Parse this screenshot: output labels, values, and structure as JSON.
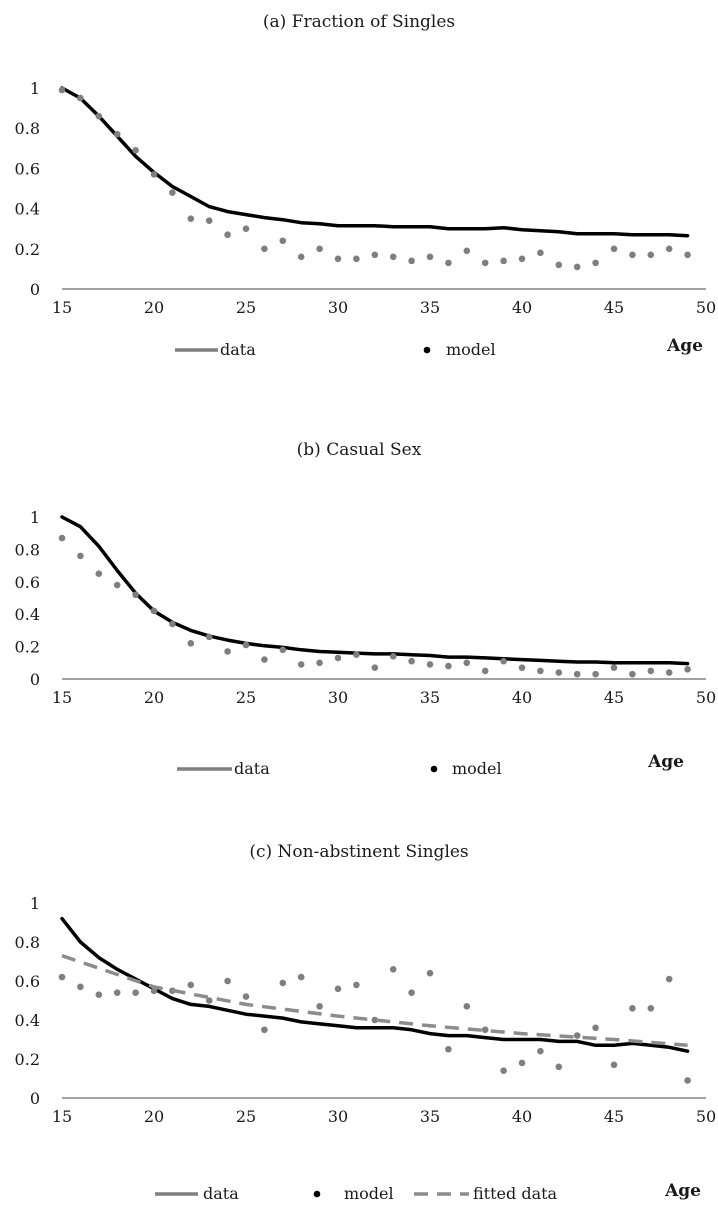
{
  "chart_data": [
    {
      "type": "line",
      "title": "(a) Fraction of Singles",
      "xlabel": "Age",
      "ylabel": "",
      "xlim": [
        15,
        50
      ],
      "ylim": [
        0,
        1
      ],
      "x_ticks": [
        "15",
        "20",
        "25",
        "30",
        "35",
        "40",
        "45",
        "50"
      ],
      "y_ticks": [
        "0",
        "0.2",
        "0.4",
        "0.6",
        "0.8",
        "1"
      ],
      "legend_position": "bottom",
      "series": [
        {
          "name": "model",
          "style": "solid",
          "color": "#000000",
          "x": [
            15,
            16,
            17,
            18,
            19,
            20,
            21,
            22,
            23,
            24,
            25,
            26,
            27,
            28,
            29,
            30,
            31,
            32,
            33,
            34,
            35,
            36,
            37,
            38,
            39,
            40,
            41,
            42,
            43,
            44,
            45,
            46,
            47,
            48,
            49
          ],
          "y": [
            1.0,
            0.95,
            0.86,
            0.76,
            0.66,
            0.58,
            0.51,
            0.46,
            0.41,
            0.385,
            0.37,
            0.355,
            0.345,
            0.33,
            0.325,
            0.315,
            0.315,
            0.315,
            0.31,
            0.31,
            0.31,
            0.3,
            0.3,
            0.3,
            0.305,
            0.295,
            0.29,
            0.285,
            0.275,
            0.275,
            0.275,
            0.27,
            0.27,
            0.27,
            0.265
          ]
        },
        {
          "name": "data",
          "style": "markers",
          "color": "#7f7f7f",
          "x": [
            15,
            16,
            17,
            18,
            19,
            20,
            21,
            22,
            23,
            24,
            25,
            26,
            27,
            28,
            29,
            30,
            31,
            32,
            33,
            34,
            35,
            36,
            37,
            38,
            39,
            40,
            41,
            42,
            43,
            44,
            45,
            46,
            47,
            48,
            49
          ],
          "y": [
            0.99,
            0.95,
            0.86,
            0.77,
            0.69,
            0.57,
            0.48,
            0.35,
            0.34,
            0.27,
            0.3,
            0.2,
            0.24,
            0.16,
            0.2,
            0.15,
            0.15,
            0.17,
            0.16,
            0.14,
            0.16,
            0.13,
            0.19,
            0.13,
            0.14,
            0.15,
            0.18,
            0.12,
            0.11,
            0.13,
            0.2,
            0.17,
            0.17,
            0.2,
            0.17
          ]
        }
      ]
    },
    {
      "type": "line",
      "title": "(b) Casual Sex",
      "xlabel": "Age",
      "ylabel": "",
      "xlim": [
        15,
        50
      ],
      "ylim": [
        0,
        1
      ],
      "x_ticks": [
        "15",
        "20",
        "25",
        "30",
        "35",
        "40",
        "45",
        "50"
      ],
      "y_ticks": [
        "0",
        "0.2",
        "0.4",
        "0.6",
        "0.8",
        "1"
      ],
      "legend_position": "bottom",
      "series": [
        {
          "name": "model",
          "style": "solid",
          "color": "#000000",
          "x": [
            15,
            16,
            17,
            18,
            19,
            20,
            21,
            22,
            23,
            24,
            25,
            26,
            27,
            28,
            29,
            30,
            31,
            32,
            33,
            34,
            35,
            36,
            37,
            38,
            39,
            40,
            41,
            42,
            43,
            44,
            45,
            46,
            47,
            48,
            49
          ],
          "y": [
            1.0,
            0.94,
            0.82,
            0.67,
            0.53,
            0.42,
            0.35,
            0.3,
            0.265,
            0.24,
            0.22,
            0.205,
            0.195,
            0.18,
            0.17,
            0.165,
            0.16,
            0.155,
            0.155,
            0.15,
            0.145,
            0.135,
            0.135,
            0.13,
            0.125,
            0.12,
            0.115,
            0.11,
            0.105,
            0.105,
            0.1,
            0.1,
            0.1,
            0.1,
            0.095
          ]
        },
        {
          "name": "data",
          "style": "markers",
          "color": "#7f7f7f",
          "x": [
            15,
            16,
            17,
            18,
            19,
            20,
            21,
            22,
            23,
            24,
            25,
            26,
            27,
            28,
            29,
            30,
            31,
            32,
            33,
            34,
            35,
            36,
            37,
            38,
            39,
            40,
            41,
            42,
            43,
            44,
            45,
            46,
            47,
            48,
            49
          ],
          "y": [
            0.87,
            0.76,
            0.65,
            0.58,
            0.52,
            0.42,
            0.34,
            0.22,
            0.26,
            0.17,
            0.21,
            0.12,
            0.18,
            0.09,
            0.1,
            0.13,
            0.15,
            0.07,
            0.14,
            0.11,
            0.09,
            0.08,
            0.1,
            0.05,
            0.11,
            0.07,
            0.05,
            0.04,
            0.03,
            0.03,
            0.07,
            0.03,
            0.05,
            0.04,
            0.06
          ]
        }
      ]
    },
    {
      "type": "line",
      "title": "(c) Non-abstinent Singles",
      "xlabel": "Age",
      "ylabel": "",
      "xlim": [
        15,
        50
      ],
      "ylim": [
        0,
        1
      ],
      "x_ticks": [
        "15",
        "20",
        "25",
        "30",
        "35",
        "40",
        "45",
        "50"
      ],
      "y_ticks": [
        "0",
        "0.2",
        "0.4",
        "0.6",
        "0.8",
        "1"
      ],
      "legend_position": "bottom",
      "series": [
        {
          "name": "model",
          "style": "solid",
          "color": "#000000",
          "x": [
            15,
            16,
            17,
            18,
            19,
            20,
            21,
            22,
            23,
            24,
            25,
            26,
            27,
            28,
            29,
            30,
            31,
            32,
            33,
            34,
            35,
            36,
            37,
            38,
            39,
            40,
            41,
            42,
            43,
            44,
            45,
            46,
            47,
            48,
            49
          ],
          "y": [
            0.92,
            0.8,
            0.72,
            0.66,
            0.61,
            0.56,
            0.51,
            0.48,
            0.47,
            0.45,
            0.43,
            0.42,
            0.41,
            0.39,
            0.38,
            0.37,
            0.36,
            0.36,
            0.36,
            0.35,
            0.33,
            0.32,
            0.32,
            0.31,
            0.3,
            0.3,
            0.3,
            0.29,
            0.29,
            0.27,
            0.27,
            0.28,
            0.27,
            0.26,
            0.24
          ]
        },
        {
          "name": "data",
          "style": "markers",
          "color": "#7f7f7f",
          "x": [
            15,
            16,
            17,
            18,
            19,
            20,
            21,
            22,
            23,
            24,
            25,
            26,
            27,
            28,
            29,
            30,
            31,
            32,
            33,
            34,
            35,
            36,
            37,
            38,
            39,
            40,
            41,
            42,
            43,
            44,
            45,
            46,
            47,
            48,
            49
          ],
          "y": [
            0.62,
            0.57,
            0.53,
            0.54,
            0.54,
            0.55,
            0.55,
            0.58,
            0.5,
            0.6,
            0.52,
            0.35,
            0.59,
            0.62,
            0.47,
            0.56,
            0.58,
            0.4,
            0.66,
            0.54,
            0.64,
            0.25,
            0.47,
            0.35,
            0.14,
            0.18,
            0.24,
            0.16,
            0.32,
            0.36,
            0.17,
            0.46,
            0.46,
            0.61,
            0.09
          ]
        },
        {
          "name": "fitted data",
          "style": "dashed",
          "color": "#8c8c8c",
          "x": [
            15,
            20,
            25,
            30,
            35,
            40,
            45,
            49
          ],
          "y": [
            0.73,
            0.57,
            0.48,
            0.42,
            0.37,
            0.33,
            0.3,
            0.27
          ]
        }
      ]
    }
  ]
}
